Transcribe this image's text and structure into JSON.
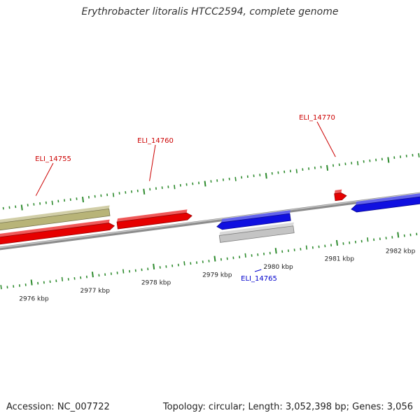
{
  "title": "Erythrobacter litoralis HTCC2594, complete genome",
  "footer": {
    "accession": "Accession: NC_007722",
    "summary": "Topology: circular; Length: 3,052,398 bp; Genes: 3,056"
  },
  "colors": {
    "backbone": "#8c8c8c",
    "tick": "#2e8b2e",
    "tick_label": "#222222",
    "label_red": "#cc0000",
    "label_blue": "#0000cc"
  },
  "ticks": {
    "labeled_kbp": [
      2976,
      2977,
      2978,
      2979,
      2980,
      2981,
      2982
    ],
    "label_suffix": " kbp",
    "minor_per_kbp": 10
  },
  "genes": [
    {
      "id": "gene-olive-1",
      "label": "",
      "strand": "plus",
      "track": 2,
      "start_kbp": 2975.0,
      "end_kbp": 2977.4,
      "arrow": false,
      "color": "#b8b478"
    },
    {
      "id": "gene-red-1",
      "label": "ELI_14755",
      "strand": "plus",
      "track": 1,
      "start_kbp": 2975.05,
      "end_kbp": 2977.45,
      "arrow": true,
      "color": "#e60000",
      "label_color": "#cc0000"
    },
    {
      "id": "gene-red-2",
      "label": "ELI_14760",
      "strand": "plus",
      "track": 1,
      "start_kbp": 2977.5,
      "end_kbp": 2978.72,
      "arrow": true,
      "color": "#e60000",
      "label_color": "#cc0000"
    },
    {
      "id": "gene-blue-1",
      "label": "",
      "strand": "minus",
      "track": 1,
      "start_kbp": 2979.1,
      "end_kbp": 2980.3,
      "arrow": true,
      "color": "#1010e0"
    },
    {
      "id": "gene-gray-1",
      "label": "ELI_14765",
      "strand": "minus",
      "track": 2,
      "start_kbp": 2979.12,
      "end_kbp": 2980.33,
      "arrow": false,
      "color": "#c4c4c4",
      "label_color": "#0000cc"
    },
    {
      "id": "gene-red-3",
      "label": "ELI_14770",
      "strand": "plus",
      "track": 1,
      "start_kbp": 2981.06,
      "end_kbp": 2981.25,
      "arrow": true,
      "color": "#e60000",
      "label_color": "#cc0000"
    },
    {
      "id": "gene-blue-2",
      "label": "",
      "strand": "minus",
      "track": 1,
      "start_kbp": 2981.3,
      "end_kbp": 2982.8,
      "arrow": true,
      "color": "#1010e0"
    }
  ]
}
